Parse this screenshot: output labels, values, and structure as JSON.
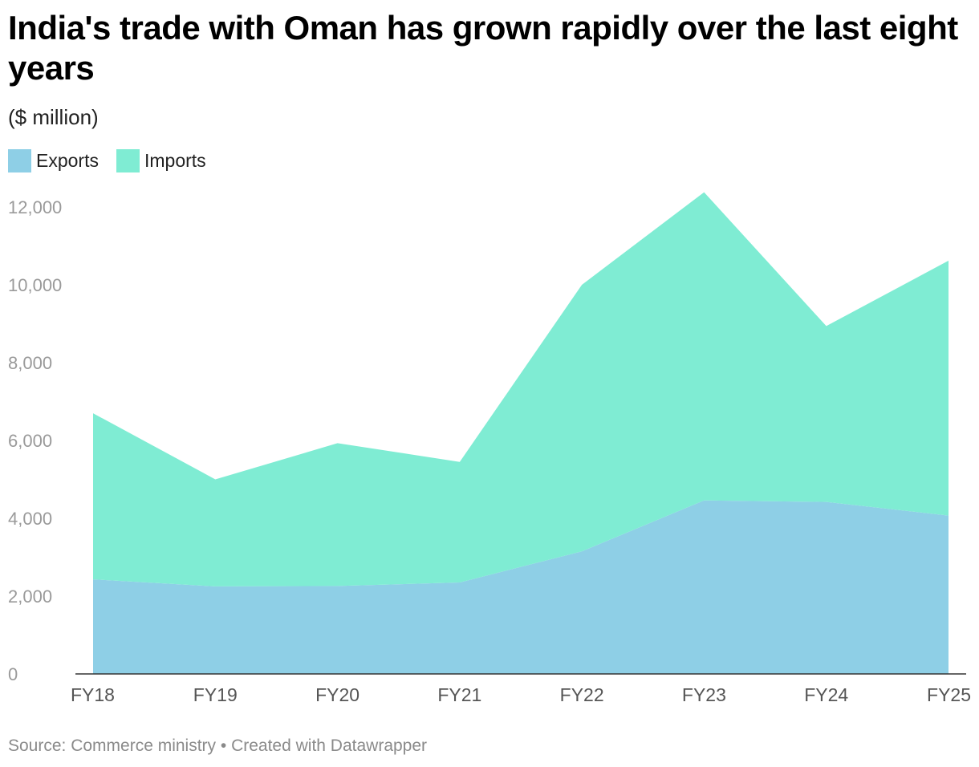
{
  "title": "India's trade with Oman has grown rapidly over the last eight years",
  "subtitle": "($ million)",
  "legend": [
    {
      "label": "Exports",
      "color": "#8ecfe6"
    },
    {
      "label": "Imports",
      "color": "#7fecd3"
    }
  ],
  "source": "Source: Commerce ministry • Created with Datawrapper",
  "chart_data": {
    "type": "area",
    "stacked": true,
    "categories": [
      "FY18",
      "FY19",
      "FY20",
      "FY21",
      "FY22",
      "FY23",
      "FY24",
      "FY25"
    ],
    "series": [
      {
        "name": "Exports",
        "color": "#8ecfe6",
        "values": [
          2430,
          2250,
          2260,
          2350,
          3150,
          4460,
          4420,
          4070
        ]
      },
      {
        "name": "Imports",
        "color": "#7fecd3",
        "values": [
          4270,
          2750,
          3670,
          3100,
          6850,
          7920,
          4520,
          6550
        ]
      }
    ],
    "yticks": [
      0,
      2000,
      4000,
      6000,
      8000,
      10000,
      12000
    ],
    "ytick_labels": [
      "0",
      "2,000",
      "4,000",
      "6,000",
      "8,000",
      "10,000",
      "12,000"
    ],
    "ylim": [
      0,
      12000
    ],
    "grid": false,
    "legend_position": "top-left"
  }
}
